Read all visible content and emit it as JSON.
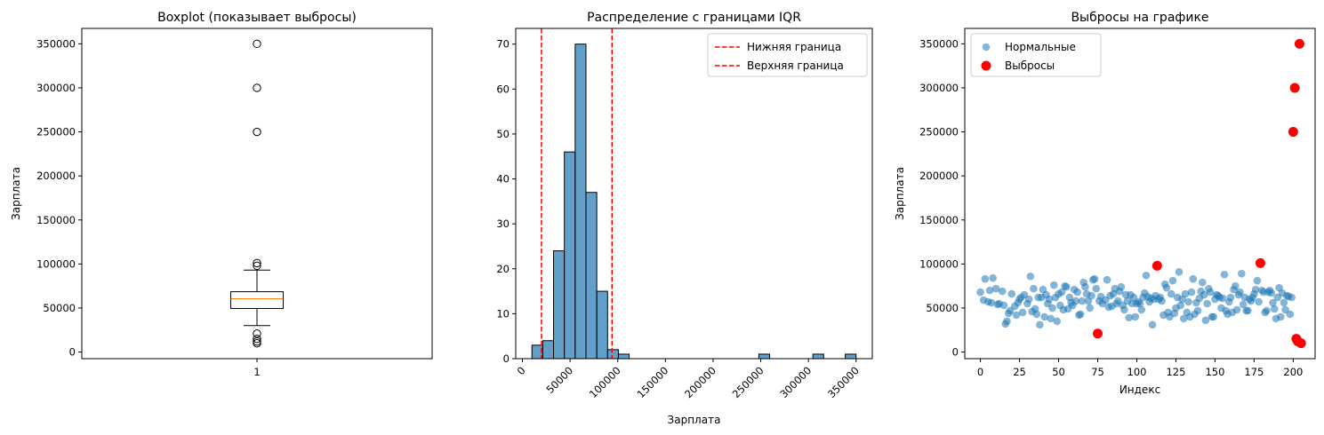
{
  "chart_data": [
    {
      "type": "boxplot",
      "title": "Boxplot (показывает выбросы)",
      "xlabel": "",
      "ylabel": "Зарплата",
      "x_tick_labels": [
        "1"
      ],
      "ylim": [
        -7500,
        367500
      ],
      "yticks": [
        0,
        50000,
        100000,
        150000,
        200000,
        250000,
        300000,
        350000
      ],
      "box": {
        "q1": 49500,
        "median": 60500,
        "q3": 68500,
        "whisker_low": 30000,
        "whisker_high": 93000
      },
      "fliers": [
        350000,
        300000,
        250000,
        101000,
        98000,
        21000,
        15000,
        12000,
        10000
      ],
      "colors": {
        "box": "#000000",
        "median": "#ff7f0e"
      }
    },
    {
      "type": "histogram",
      "title": "Распределение с границами IQR",
      "xlabel": "Зарплата",
      "ylabel": "",
      "xlim": [
        -7000,
        367000
      ],
      "ylim": [
        0,
        73.5
      ],
      "xticks": [
        0,
        50000,
        100000,
        150000,
        200000,
        250000,
        300000,
        350000
      ],
      "yticks": [
        0,
        10,
        20,
        30,
        40,
        50,
        60,
        70
      ],
      "bin_start": 10000,
      "bin_width": 11333,
      "counts": [
        3,
        4,
        24,
        46,
        70,
        37,
        15,
        2,
        1,
        0,
        0,
        0,
        0,
        0,
        0,
        0,
        0,
        0,
        0,
        0,
        0,
        1,
        0,
        0,
        0,
        0,
        1,
        0,
        0,
        1
      ],
      "vlines": [
        {
          "name": "Нижняя граница",
          "x": 20000,
          "color": "#ff0000"
        },
        {
          "name": "Верхняя граница",
          "x": 94000,
          "color": "#ff0000"
        }
      ],
      "bar_color": "#1f77b4",
      "legend_position": "top-right"
    },
    {
      "type": "scatter",
      "title": "Выбросы на графике",
      "xlabel": "Индекс",
      "ylabel": "Зарплата",
      "xlim": [
        -10,
        214
      ],
      "ylim": [
        -7500,
        367500
      ],
      "xticks": [
        0,
        25,
        50,
        75,
        100,
        125,
        150,
        175,
        200
      ],
      "yticks": [
        0,
        50000,
        100000,
        150000,
        200000,
        250000,
        300000,
        350000
      ],
      "legend_position": "top-left",
      "series": [
        {
          "name": "Нормальные",
          "color": "#1f77b4",
          "points": [
            [
              0,
              68000
            ],
            [
              2,
              59000
            ],
            [
              3,
              83000
            ],
            [
              5,
              57000
            ],
            [
              6,
              70000
            ],
            [
              7,
              56000
            ],
            [
              8,
              84000
            ],
            [
              10,
              72000
            ],
            [
              11,
              54000
            ],
            [
              12,
              55000
            ],
            [
              14,
              69000
            ],
            [
              15,
              53000
            ],
            [
              16,
              32000
            ],
            [
              17,
              35000
            ],
            [
              18,
              44000
            ],
            [
              19,
              47000
            ],
            [
              20,
              66000
            ],
            [
              22,
              52000
            ],
            [
              23,
              42000
            ],
            [
              24,
              56000
            ],
            [
              25,
              60000
            ],
            [
              26,
              62000
            ],
            [
              27,
              45000
            ],
            [
              28,
              65000
            ],
            [
              30,
              55000
            ],
            [
              31,
              60000
            ],
            [
              32,
              86000
            ],
            [
              33,
              46000
            ],
            [
              34,
              72000
            ],
            [
              35,
              49000
            ],
            [
              36,
              43000
            ],
            [
              37,
              62000
            ],
            [
              38,
              31000
            ],
            [
              39,
              62000
            ],
            [
              40,
              71000
            ],
            [
              41,
              40000
            ],
            [
              42,
              65000
            ],
            [
              43,
              55000
            ],
            [
              44,
              60000
            ],
            [
              45,
              38000
            ],
            [
              46,
              50000
            ],
            [
              47,
              76000
            ],
            [
              48,
              62000
            ],
            [
              49,
              35000
            ],
            [
              50,
              66000
            ],
            [
              51,
              53000
            ],
            [
              52,
              68000
            ],
            [
              53,
              48000
            ],
            [
              54,
              75000
            ],
            [
              55,
              74000
            ],
            [
              56,
              49000
            ],
            [
              57,
              62000
            ],
            [
              58,
              56000
            ],
            [
              59,
              53000
            ],
            [
              60,
              71000
            ],
            [
              61,
              58000
            ],
            [
              62,
              68000
            ],
            [
              63,
              42000
            ],
            [
              64,
              43000
            ],
            [
              65,
              58000
            ],
            [
              66,
              79000
            ],
            [
              67,
              74000
            ],
            [
              68,
              66000
            ],
            [
              69,
              58000
            ],
            [
              70,
              50000
            ],
            [
              71,
              64000
            ],
            [
              72,
              82000
            ],
            [
              73,
              83000
            ],
            [
              74,
              72000
            ],
            [
              76,
              58000
            ],
            [
              77,
              63000
            ],
            [
              78,
              55000
            ],
            [
              80,
              59000
            ],
            [
              81,
              82000
            ],
            [
              82,
              51000
            ],
            [
              83,
              64000
            ],
            [
              84,
              52000
            ],
            [
              85,
              66000
            ],
            [
              86,
              72000
            ],
            [
              87,
              55000
            ],
            [
              88,
              58000
            ],
            [
              89,
              69000
            ],
            [
              90,
              74000
            ],
            [
              91,
              53000
            ],
            [
              92,
              48000
            ],
            [
              93,
              65000
            ],
            [
              94,
              58000
            ],
            [
              95,
              39000
            ],
            [
              96,
              65000
            ],
            [
              97,
              55000
            ],
            [
              98,
              62000
            ],
            [
              99,
              40000
            ],
            [
              100,
              55000
            ],
            [
              101,
              57000
            ],
            [
              102,
              55000
            ],
            [
              103,
              48000
            ],
            [
              104,
              62000
            ],
            [
              105,
              67000
            ],
            [
              106,
              87000
            ],
            [
              107,
              63000
            ],
            [
              108,
              57000
            ],
            [
              109,
              61000
            ],
            [
              110,
              31000
            ],
            [
              111,
              60000
            ],
            [
              112,
              64000
            ],
            [
              114,
              60000
            ],
            [
              115,
              62000
            ],
            [
              116,
              58000
            ],
            [
              117,
              42000
            ],
            [
              118,
              77000
            ],
            [
              119,
              73000
            ],
            [
              120,
              45000
            ],
            [
              121,
              40000
            ],
            [
              122,
              66000
            ],
            [
              123,
              81000
            ],
            [
              124,
              44000
            ],
            [
              125,
              50000
            ],
            [
              126,
              62000
            ],
            [
              127,
              91000
            ],
            [
              128,
              53000
            ],
            [
              129,
              60000
            ],
            [
              130,
              38000
            ],
            [
              131,
              66000
            ],
            [
              132,
              45000
            ],
            [
              133,
              57000
            ],
            [
              134,
              40000
            ],
            [
              135,
              68000
            ],
            [
              136,
              83000
            ],
            [
              137,
              43000
            ],
            [
              138,
              56000
            ],
            [
              139,
              47000
            ],
            [
              140,
              61000
            ],
            [
              141,
              69000
            ],
            [
              142,
              79000
            ],
            [
              143,
              65000
            ],
            [
              144,
              36000
            ],
            [
              145,
              55000
            ],
            [
              146,
              72000
            ],
            [
              147,
              68000
            ],
            [
              148,
              40000
            ],
            [
              149,
              40000
            ],
            [
              150,
              60000
            ],
            [
              151,
              65000
            ],
            [
              152,
              64000
            ],
            [
              153,
              62000
            ],
            [
              154,
              50000
            ],
            [
              155,
              61000
            ],
            [
              156,
              88000
            ],
            [
              157,
              47000
            ],
            [
              158,
              43000
            ],
            [
              159,
              57000
            ],
            [
              160,
              62000
            ],
            [
              161,
              45000
            ],
            [
              162,
              71000
            ],
            [
              163,
              75000
            ],
            [
              164,
              48000
            ],
            [
              165,
              65000
            ],
            [
              166,
              68000
            ],
            [
              167,
              89000
            ],
            [
              168,
              54000
            ],
            [
              169,
              62000
            ],
            [
              170,
              47000
            ],
            [
              171,
              47000
            ],
            [
              172,
              60000
            ],
            [
              173,
              58000
            ],
            [
              174,
              62000
            ],
            [
              175,
              66000
            ],
            [
              176,
              71000
            ],
            [
              177,
              81000
            ],
            [
              178,
              57000
            ],
            [
              180,
              70000
            ],
            [
              181,
              68000
            ],
            [
              182,
              45000
            ],
            [
              183,
              47000
            ],
            [
              184,
              68000
            ],
            [
              185,
              70000
            ],
            [
              186,
              67000
            ],
            [
              187,
              56000
            ],
            [
              188,
              49000
            ],
            [
              189,
              38000
            ],
            [
              190,
              62000
            ],
            [
              191,
              73000
            ],
            [
              192,
              40000
            ],
            [
              193,
              67000
            ],
            [
              194,
              56000
            ],
            [
              195,
              48000
            ],
            [
              196,
              64000
            ],
            [
              197,
              63000
            ],
            [
              198,
              43000
            ],
            [
              199,
              62000
            ]
          ]
        },
        {
          "name": "Выбросы",
          "color": "#ff0000",
          "points": [
            [
              75,
              21000
            ],
            [
              113,
              98000
            ],
            [
              179,
              101000
            ],
            [
              200,
              250000
            ],
            [
              201,
              300000
            ],
            [
              202,
              15000
            ],
            [
              203,
              12000
            ],
            [
              204,
              350000
            ],
            [
              205,
              10000
            ]
          ]
        }
      ]
    }
  ]
}
